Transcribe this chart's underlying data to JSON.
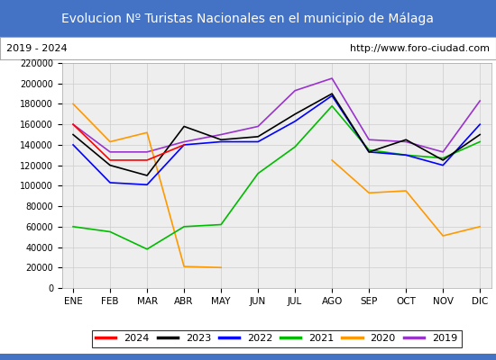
{
  "title": "Evolucion Nº Turistas Nacionales en el municipio de Málaga",
  "subtitle_left": "2019 - 2024",
  "subtitle_right": "http://www.foro-ciudad.com",
  "title_bg_color": "#4472c4",
  "title_text_color": "#ffffff",
  "months": [
    "ENE",
    "FEB",
    "MAR",
    "ABR",
    "MAY",
    "JUN",
    "JUL",
    "AGO",
    "SEP",
    "OCT",
    "NOV",
    "DIC"
  ],
  "series": {
    "2024": {
      "color": "#ff0000",
      "data": [
        160000,
        125000,
        125000,
        140000,
        null,
        null,
        null,
        null,
        null,
        null,
        null,
        null
      ]
    },
    "2023": {
      "color": "#000000",
      "data": [
        150000,
        120000,
        110000,
        158000,
        145000,
        148000,
        170000,
        190000,
        133000,
        145000,
        125000,
        150000
      ]
    },
    "2022": {
      "color": "#0000ff",
      "data": [
        140000,
        103000,
        101000,
        140000,
        143000,
        143000,
        163000,
        188000,
        133000,
        130000,
        120000,
        160000
      ]
    },
    "2021": {
      "color": "#00bb00",
      "data": [
        60000,
        55000,
        38000,
        60000,
        62000,
        112000,
        138000,
        178000,
        135000,
        130000,
        127000,
        143000
      ]
    },
    "2020": {
      "color": "#ff9900",
      "data": [
        180000,
        143000,
        152000,
        21000,
        20000,
        null,
        null,
        125000,
        93000,
        95000,
        51000,
        60000
      ]
    },
    "2019": {
      "color": "#9933cc",
      "data": [
        160000,
        133000,
        133000,
        143000,
        150000,
        158000,
        193000,
        205000,
        145000,
        143000,
        133000,
        183000
      ]
    }
  },
  "ylim": [
    0,
    220000
  ],
  "yticks": [
    0,
    20000,
    40000,
    60000,
    80000,
    100000,
    120000,
    140000,
    160000,
    180000,
    200000,
    220000
  ],
  "grid_color": "#cccccc",
  "bg_color": "#ffffff",
  "plot_bg_color": "#eeeeee"
}
